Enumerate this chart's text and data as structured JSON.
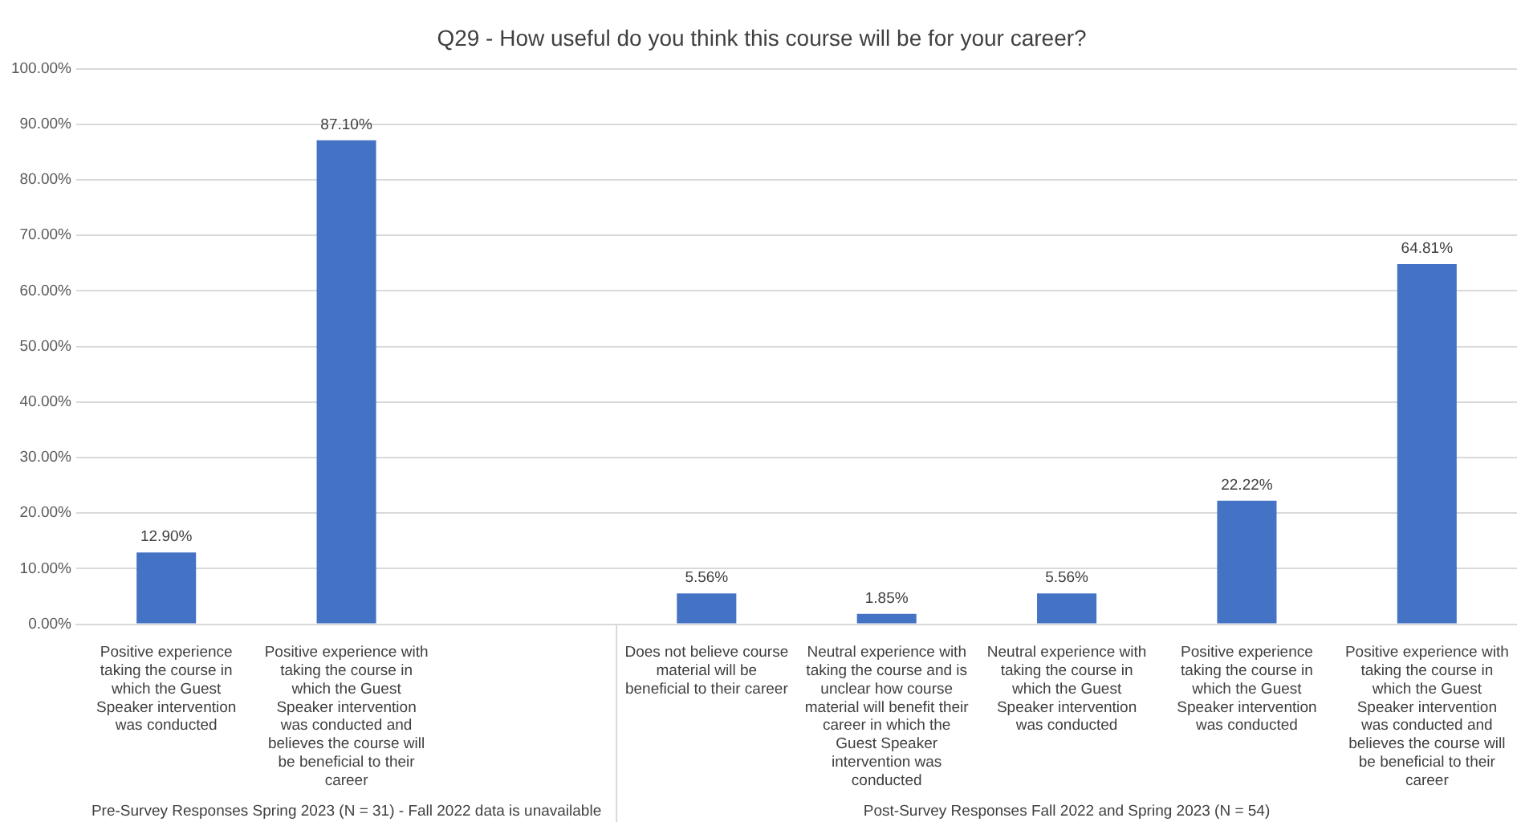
{
  "chart_data": {
    "type": "bar",
    "title": "Q29 - How useful do you think this course will be for your career?",
    "categories": [
      "Positive experience taking the course in which the Guest Speaker intervention was conducted",
      "Positive experience with taking the course in which the Guest Speaker intervention was conducted and believes the course will be beneficial to their career",
      null,
      "Does not believe course material will be beneficial to their career",
      "Neutral experience with taking the course and is unclear how course material will benefit their career in which the Guest Speaker intervention was conducted",
      "Neutral experience with taking the course in which the Guest Speaker intervention was conducted",
      "Positive experience taking the course in which the Guest Speaker intervention was conducted",
      "Positive experience with taking the course in which the Guest Speaker intervention was conducted and believes the course will be beneficial to their career"
    ],
    "values": [
      12.9,
      87.1,
      null,
      5.56,
      1.85,
      5.56,
      22.22,
      64.81
    ],
    "value_labels": [
      "12.90%",
      "87.10%",
      null,
      "5.56%",
      "1.85%",
      "5.56%",
      "22.22%",
      "64.81%"
    ],
    "color": "#4472c4",
    "ylim": [
      0,
      100
    ],
    "yticks": [
      {
        "value": 0,
        "label": "0.00%"
      },
      {
        "value": 10,
        "label": "10.00%"
      },
      {
        "value": 20,
        "label": "20.00%"
      },
      {
        "value": 30,
        "label": "30.00%"
      },
      {
        "value": 40,
        "label": "40.00%"
      },
      {
        "value": 50,
        "label": "50.00%"
      },
      {
        "value": 60,
        "label": "60.00%"
      },
      {
        "value": 70,
        "label": "70.00%"
      },
      {
        "value": 80,
        "label": "80.00%"
      },
      {
        "value": 90,
        "label": "90.00%"
      },
      {
        "value": 100,
        "label": "100.00%"
      }
    ],
    "grid": "y",
    "annotations": [
      "Pre-Survey Responses Spring 2023 (N = 31) - Fall 2022 data is unavailable",
      "Post-Survey Responses Fall 2022 and Spring 2023 (N = 54)"
    ]
  }
}
